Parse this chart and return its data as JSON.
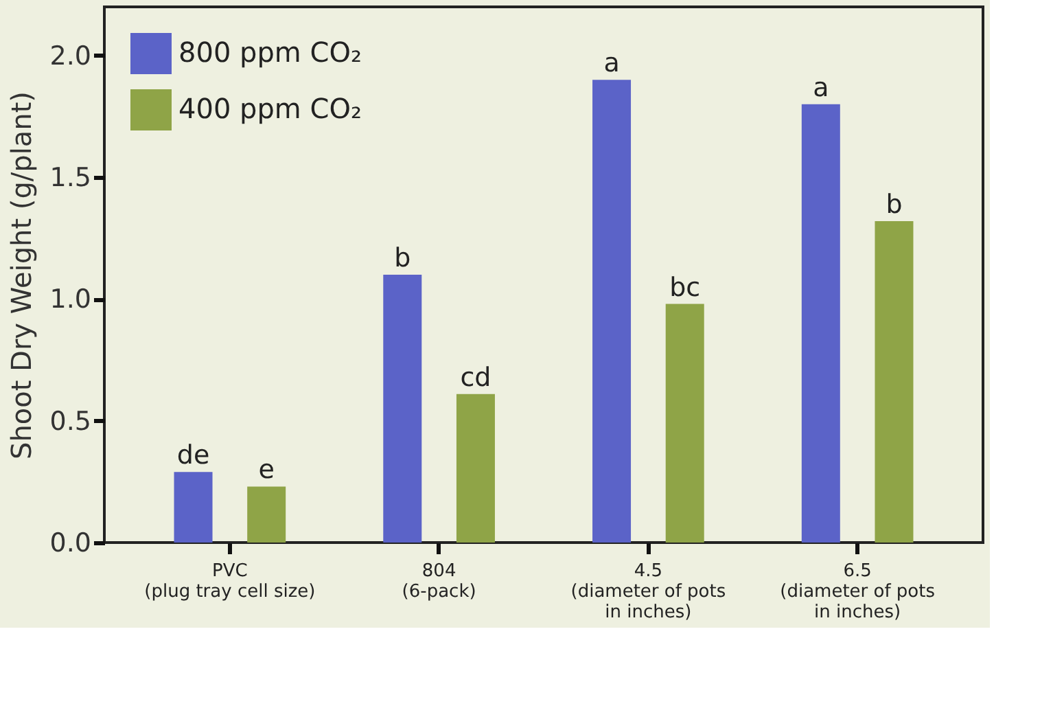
{
  "chart_data": {
    "type": "bar",
    "ylabel": "Shoot Dry Weight (g/plant)",
    "categories": [
      "PVC\n(plug tray cell size)",
      "804\n(6-pack)",
      "4.5\n(diameter of pots\nin inches)",
      "6.5\n(diameter of pots\nin inches)"
    ],
    "series": [
      {
        "name": "800 ppm CO₂",
        "color": "#5b63c8",
        "values": [
          0.29,
          1.1,
          1.9,
          1.8
        ],
        "value_labels": [
          "de",
          "b",
          "a",
          "a"
        ]
      },
      {
        "name": "400 ppm CO₂",
        "color": "#8fa447",
        "values": [
          0.23,
          0.61,
          0.98,
          1.32
        ],
        "value_labels": [
          "e",
          "cd",
          "bc",
          "b"
        ]
      }
    ],
    "ylim": [
      0,
      2.2
    ],
    "yticks": [
      {
        "value": 0,
        "label": "0.0"
      },
      {
        "value": 0.5,
        "label": "0.5"
      },
      {
        "value": 1,
        "label": "1.0"
      },
      {
        "value": 1.5,
        "label": "1.5"
      },
      {
        "value": 2,
        "label": "2.0"
      }
    ],
    "grid": false,
    "legend": "top left"
  }
}
